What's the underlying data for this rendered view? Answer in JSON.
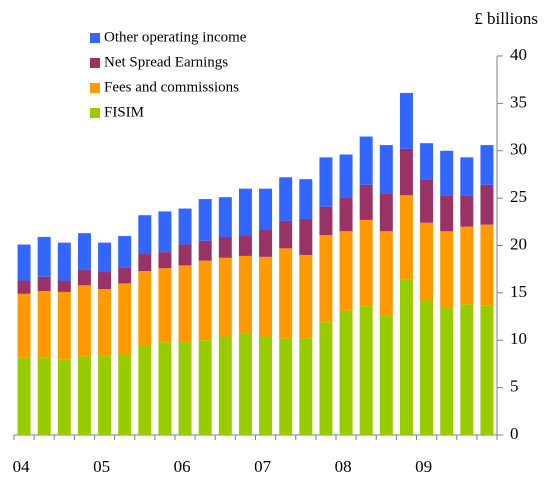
{
  "chart_data": {
    "type": "stacked_bar",
    "y_axis_label": "£ billions",
    "categories": [
      "04",
      null,
      null,
      null,
      "05",
      null,
      null,
      null,
      "06",
      null,
      null,
      null,
      "07",
      null,
      null,
      null,
      "08",
      null,
      null,
      null,
      "09",
      null,
      null,
      null
    ],
    "series": [
      {
        "name": "FISIM",
        "color": "#99cc00",
        "values": [
          8.2,
          8.2,
          8.0,
          8.3,
          8.4,
          8.5,
          9.4,
          9.8,
          9.8,
          10.0,
          10.4,
          10.7,
          10.4,
          10.2,
          10.2,
          11.9,
          13.1,
          13.6,
          12.6,
          16.4,
          14.2,
          13.4,
          13.8,
          13.7
        ]
      },
      {
        "name": "Fees and commissions",
        "color": "#ff9900",
        "values": [
          6.7,
          7.0,
          7.1,
          7.5,
          7.0,
          7.5,
          7.9,
          7.8,
          8.1,
          8.4,
          8.3,
          8.2,
          8.4,
          9.5,
          8.8,
          9.2,
          8.4,
          9.1,
          8.9,
          8.9,
          8.2,
          8.1,
          8.2,
          8.5
        ]
      },
      {
        "name": "Net Spread Earnings",
        "color": "#993366",
        "values": [
          1.4,
          1.5,
          1.2,
          1.7,
          1.8,
          1.7,
          1.8,
          1.7,
          2.2,
          2.1,
          2.2,
          2.2,
          2.9,
          2.9,
          3.8,
          3.0,
          3.6,
          3.7,
          4.0,
          4.9,
          4.6,
          3.8,
          3.3,
          4.2
        ]
      },
      {
        "name": "Other operating income",
        "color": "#3366ff",
        "values": [
          3.8,
          4.2,
          4.0,
          3.8,
          3.1,
          3.3,
          4.1,
          4.3,
          3.8,
          4.4,
          4.2,
          4.9,
          4.3,
          4.6,
          4.2,
          5.2,
          4.5,
          5.1,
          5.1,
          5.9,
          3.8,
          4.7,
          4.0,
          4.2
        ]
      }
    ],
    "ylim": [
      0,
      40
    ],
    "yticks": [
      0,
      5,
      10,
      15,
      20,
      25,
      30,
      35,
      40
    ],
    "legend": "upper left"
  }
}
